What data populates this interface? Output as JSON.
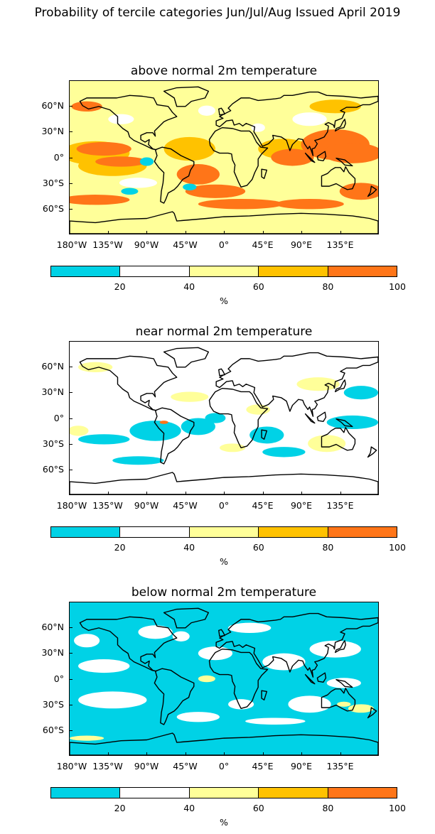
{
  "figure": {
    "title": "Probability of tercile categories Jun/Jul/Aug Issued April 2019"
  },
  "panels": [
    {
      "title": "above normal 2m temperature",
      "category": "above"
    },
    {
      "title": "near normal 2m temperature",
      "category": "near"
    },
    {
      "title": "below normal 2m temperature",
      "category": "below"
    }
  ],
  "axes": {
    "lat_labels": [
      "60°N",
      "30°N",
      "0°",
      "30°S",
      "60°S"
    ],
    "lon_labels": [
      "180°W",
      "135°W",
      "90°W",
      "45°W",
      "0°",
      "45°E",
      "90°E",
      "135°E"
    ]
  },
  "colorbar": {
    "ticks": [
      "20",
      "40",
      "60",
      "80",
      "100"
    ],
    "unit": "%",
    "colors": [
      "#00d2e6",
      "#ffffff",
      "#ffff99",
      "#ffc200",
      "#ff7518"
    ]
  },
  "chart_data": {
    "type": "heatmap",
    "projection": "equirectangular",
    "lon_range": [
      -180,
      180
    ],
    "lat_range": [
      -90,
      90
    ],
    "levels": [
      0,
      20,
      40,
      60,
      80,
      100
    ],
    "colors": [
      "#00d2e6",
      "#ffffff",
      "#ffff99",
      "#ffc200",
      "#ff7518"
    ]
  }
}
